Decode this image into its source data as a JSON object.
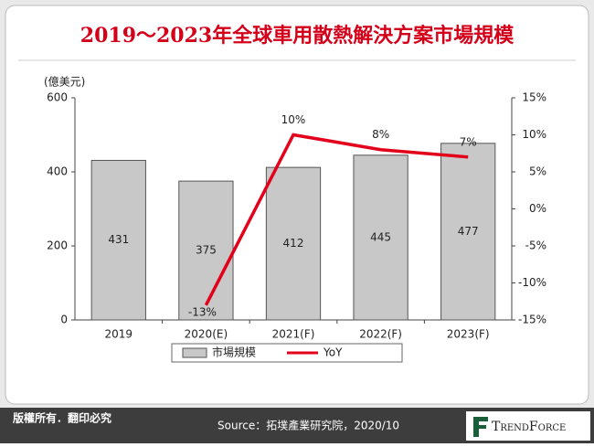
{
  "chart_data": {
    "type": "bar",
    "title": "2019～2023年全球車用散熱解決方案市場規模",
    "ylabel": "(億美元)",
    "categories": [
      "2019",
      "2020(E)",
      "2021(F)",
      "2022(F)",
      "2023(F)"
    ],
    "series": [
      {
        "name": "市場規模",
        "type": "bar",
        "color": "#c8c8c8",
        "values": [
          431,
          375,
          412,
          445,
          477
        ]
      },
      {
        "name": "YoY",
        "type": "line",
        "axis": "y2",
        "color": "#e2001a",
        "values": [
          null,
          -13,
          10,
          8,
          7
        ],
        "value_labels": [
          null,
          "-13%",
          "10%",
          "8%",
          "7%"
        ]
      }
    ],
    "ylim": [
      0,
      600
    ],
    "yticks": [
      0,
      200,
      400,
      600
    ],
    "y2lim": [
      -15,
      15
    ],
    "y2ticks": [
      {
        "value": -15,
        "label": "-15%"
      },
      {
        "value": -10,
        "label": "-10%"
      },
      {
        "value": -5,
        "label": "-5%"
      },
      {
        "value": 0,
        "label": "0%"
      },
      {
        "value": 5,
        "label": "5%"
      },
      {
        "value": 10,
        "label": "10%"
      },
      {
        "value": 15,
        "label": "15%"
      }
    ],
    "grid": false,
    "legend": "bottom"
  },
  "footer": {
    "copyright": "版權所有．翻印必究",
    "source": "Source：拓墣產業研究院，2020/10",
    "brand": "TrendForce"
  }
}
